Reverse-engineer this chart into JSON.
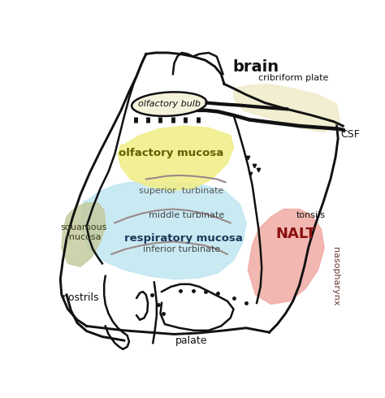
{
  "background_color": "#ffffff",
  "fig_width": 4.74,
  "fig_height": 4.9,
  "dpi": 100,
  "colors": {
    "olfactory_mucosa": "#f0ee88",
    "respiratory_mucosa": "#b8e4f0",
    "squamous_mucosa": "#c2c99a",
    "nalt": "#f0a8a0",
    "csf_area": "#f0edcc",
    "outline": "#111111",
    "turbinate_line": "#9a8888"
  },
  "labels": {
    "brain": "brain",
    "cribriform": "cribriform plate",
    "olfactory_bulb": "olfactory bulb",
    "csf": "CSF",
    "olfactory_mucosa": "olfactory mucosa",
    "superior_turbinate": "superior  turbinate",
    "middle_turbinate": "middle turbinate",
    "respiratory_mucosa": "respiratory mucosa",
    "inferior_turbinate": "inferior turbinate",
    "squamous_mucosa": "squamous\nmucosa",
    "nostrils": "nostrils",
    "palate": "palate",
    "tonsils": "tonsils",
    "nalt": "NALT",
    "nasopharynx": "nasopharynx"
  }
}
